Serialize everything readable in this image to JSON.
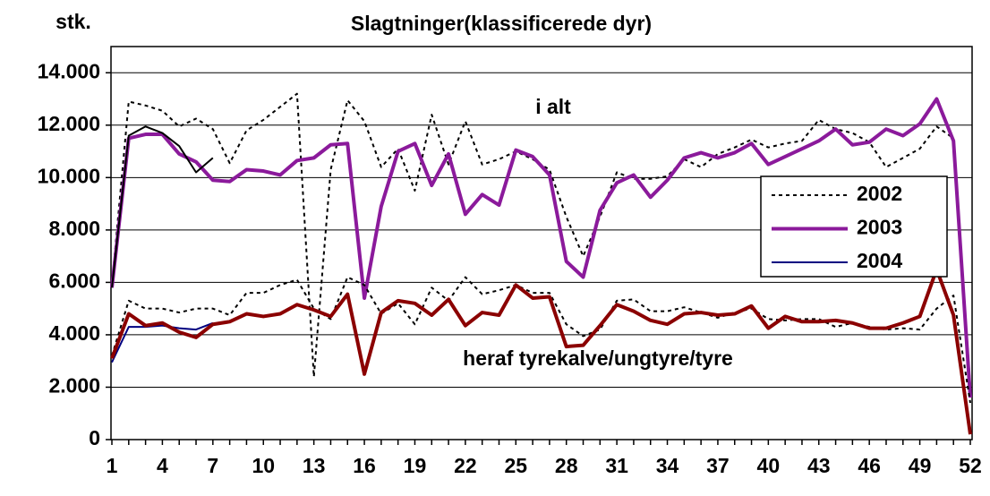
{
  "chart_data": {
    "type": "line",
    "title": "Slagtninger(klassificerede dyr)",
    "y_label": "stk.",
    "annotations": [
      "i alt",
      "heraf tyrekalve/ungtyre/tyre"
    ],
    "x": [
      1,
      2,
      3,
      4,
      5,
      6,
      7,
      8,
      9,
      10,
      11,
      12,
      13,
      14,
      15,
      16,
      17,
      18,
      19,
      20,
      21,
      22,
      23,
      24,
      25,
      26,
      27,
      28,
      29,
      30,
      31,
      32,
      33,
      34,
      35,
      36,
      37,
      38,
      39,
      40,
      41,
      42,
      43,
      44,
      45,
      46,
      47,
      48,
      49,
      50,
      51,
      52
    ],
    "xlim": [
      1,
      52
    ],
    "xticks": [
      1,
      4,
      7,
      10,
      13,
      16,
      19,
      22,
      25,
      28,
      31,
      34,
      37,
      40,
      43,
      46,
      49,
      52
    ],
    "ylim": [
      0,
      15000
    ],
    "yticks": [
      {
        "value": 0,
        "label": "0"
      },
      {
        "value": 2000,
        "label": "2.000"
      },
      {
        "value": 4000,
        "label": "4.000"
      },
      {
        "value": 6000,
        "label": "6.000"
      },
      {
        "value": 8000,
        "label": "8.000"
      },
      {
        "value": 10000,
        "label": "10.000"
      },
      {
        "value": 12000,
        "label": "12.000"
      },
      {
        "value": 14000,
        "label": "14.000"
      }
    ],
    "grid": true,
    "legend": "right",
    "series": [
      {
        "name": "2002",
        "color": "#000000",
        "line_style": "dotted",
        "width": 2,
        "values": [
          5900,
          12900,
          12750,
          12550,
          11950,
          12250,
          11850,
          10550,
          11800,
          12200,
          12700,
          13200,
          2400,
          10300,
          12950,
          12150,
          10400,
          11100,
          9500,
          12400,
          10500,
          12150,
          10500,
          10700,
          11000,
          10700,
          10300,
          8500,
          7000,
          8500,
          10200,
          9950,
          9950,
          10050,
          10700,
          10400,
          10900,
          11150,
          11450,
          11150,
          11300,
          11400,
          12200,
          11850,
          11700,
          11350,
          10400,
          10750,
          11100,
          11950,
          11500,
          2000
        ]
      },
      {
        "name": "2003",
        "color": "#8b1a9b",
        "line_style": "solid",
        "width": 4,
        "values": [
          5800,
          11500,
          11650,
          11650,
          10900,
          10600,
          9900,
          9850,
          10300,
          10250,
          10100,
          10650,
          10750,
          11250,
          11300,
          5400,
          8900,
          11000,
          11300,
          9700,
          10900,
          8600,
          9350,
          8950,
          11050,
          10800,
          10100,
          6800,
          6200,
          8750,
          9800,
          10100,
          9250,
          9900,
          10750,
          10950,
          10750,
          10950,
          11300,
          10500,
          10800,
          11100,
          11400,
          11850,
          11250,
          11350,
          11850,
          11600,
          12050,
          13000,
          11400,
          1600
        ]
      },
      {
        "name": "2004",
        "color": "#000080",
        "line_style": "solid",
        "width": 2,
        "values": [
          2950,
          4300,
          4300,
          4350,
          4250,
          4200,
          4450,
          null,
          null,
          null,
          null,
          null,
          null,
          null,
          null,
          null,
          null,
          null,
          null,
          null,
          null,
          null,
          null,
          null,
          null,
          null,
          null,
          null,
          null,
          null,
          null,
          null,
          null,
          null,
          null,
          null,
          null,
          null,
          null,
          null,
          null,
          null,
          null,
          null,
          null,
          null,
          null,
          null,
          null,
          null,
          null,
          null
        ]
      },
      {
        "color": "#000000",
        "line_style": "dotted",
        "width": 2,
        "values": [
          3200,
          5300,
          5000,
          5000,
          4850,
          5000,
          5000,
          4750,
          5600,
          5600,
          5900,
          6100,
          5000,
          4600,
          6200,
          5900,
          4800,
          5200,
          4400,
          5800,
          5300,
          6200,
          5550,
          5700,
          5900,
          5600,
          5600,
          4400,
          3950,
          4200,
          5300,
          5350,
          4900,
          4900,
          5050,
          4850,
          4650,
          4850,
          5000,
          4600,
          4550,
          4600,
          4600,
          4300,
          4450,
          4300,
          4200,
          4250,
          4200,
          5000,
          5500,
          1400
        ]
      },
      {
        "color": "#8b0000",
        "line_style": "solid",
        "width": 4,
        "values": [
          3100,
          4800,
          4350,
          4450,
          4100,
          3900,
          4400,
          4500,
          4800,
          4700,
          4800,
          5150,
          4950,
          4700,
          5550,
          2500,
          4850,
          5300,
          5200,
          4750,
          5350,
          4350,
          4850,
          4750,
          5900,
          5400,
          5450,
          3550,
          3600,
          4350,
          5150,
          4900,
          4550,
          4400,
          4800,
          4850,
          4750,
          4800,
          5100,
          4250,
          4700,
          4500,
          4500,
          4550,
          4450,
          4250,
          4250,
          4450,
          4700,
          6500,
          4750,
          200
        ]
      },
      {
        "color": "#000000",
        "line_style": "solid",
        "width": 2,
        "values": [
          5800,
          11600,
          11950,
          11700,
          11200,
          10200,
          10750,
          null,
          null,
          null,
          null,
          null,
          null,
          null,
          null,
          null,
          null,
          null,
          null,
          null,
          null,
          null,
          null,
          null,
          null,
          null,
          null,
          null,
          null,
          null,
          null,
          null,
          null,
          null,
          null,
          null,
          null,
          null,
          null,
          null,
          null,
          null,
          null,
          null,
          null,
          null,
          null,
          null,
          null,
          null,
          null,
          null
        ]
      }
    ]
  }
}
